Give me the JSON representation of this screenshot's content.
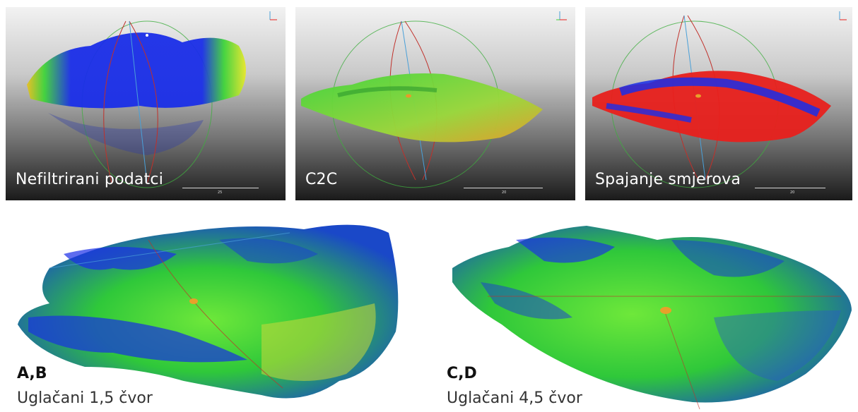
{
  "panels": [
    {
      "caption": "Nefiltrirani podatci",
      "scale_label": "25"
    },
    {
      "caption": "C2C",
      "scale_label": "20"
    },
    {
      "caption": "Spajanje smjerova",
      "scale_label": "20"
    }
  ],
  "bottom": [
    {
      "id_label": "A,B",
      "desc": "Uglačani 1,5 čvor"
    },
    {
      "id_label": "C,D",
      "desc": "Uglačani 4,5 čvor"
    }
  ],
  "axis_letters": {
    "z": "z",
    "x": "x",
    "y": "y"
  },
  "colors": {
    "cloud_blue": "#1a2ee8",
    "cloud_green": "#3fd43a",
    "cloud_yellow": "#e8e82a",
    "cloud_red": "#e8201c",
    "sphere_green": "#3fae3f",
    "sphere_red": "#c0302a",
    "axis_blue": "#4aa0d8"
  }
}
